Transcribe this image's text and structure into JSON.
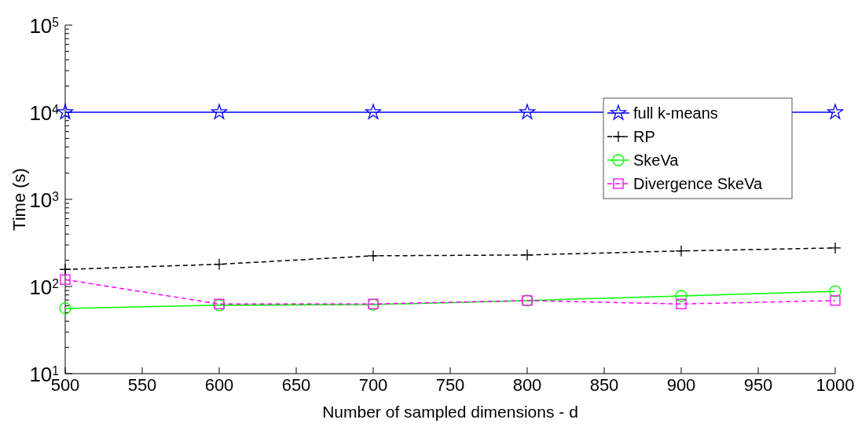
{
  "chart_data": {
    "type": "line",
    "xlabel": "Number of sampled dimensions - d",
    "ylabel": "Time (s)",
    "x": [
      500,
      600,
      700,
      800,
      900,
      1000
    ],
    "xlim": [
      500,
      1000
    ],
    "xticks": [
      500,
      550,
      600,
      650,
      700,
      750,
      800,
      850,
      900,
      950,
      1000
    ],
    "ylim": [
      10,
      100000
    ],
    "log": true,
    "yticks": [
      {
        "value": 10,
        "label": "10$^{1}$"
      },
      {
        "value": 100,
        "label": "10$^{2}$"
      },
      {
        "value": 1000,
        "label": "10$^{3}$"
      },
      {
        "value": 10000,
        "label": "10$^{4}$"
      },
      {
        "value": 100000,
        "label": "10$^{5}$"
      }
    ],
    "grid": false,
    "legend": "right",
    "series": [
      {
        "name": "full k-means",
        "color": "#0000ff",
        "marker": "star",
        "line_style": "solid",
        "values": [
          10000,
          10000,
          10000,
          10000,
          null,
          10000
        ]
      },
      {
        "name": "RP",
        "color": "#000000",
        "marker": "cross",
        "line_style": "dashed",
        "values": [
          157,
          180,
          225,
          230,
          256,
          277
        ]
      },
      {
        "name": "SkeVa",
        "color": "#00ff00",
        "marker": "circle",
        "line_style": "solid",
        "values": [
          56,
          61,
          62,
          69,
          78,
          88
        ]
      },
      {
        "name": "Divergence SkeVa",
        "color": "#ff00ff",
        "marker": "square",
        "line_style": "dashed",
        "values": [
          120,
          63,
          63,
          69,
          63,
          69
        ]
      }
    ]
  }
}
